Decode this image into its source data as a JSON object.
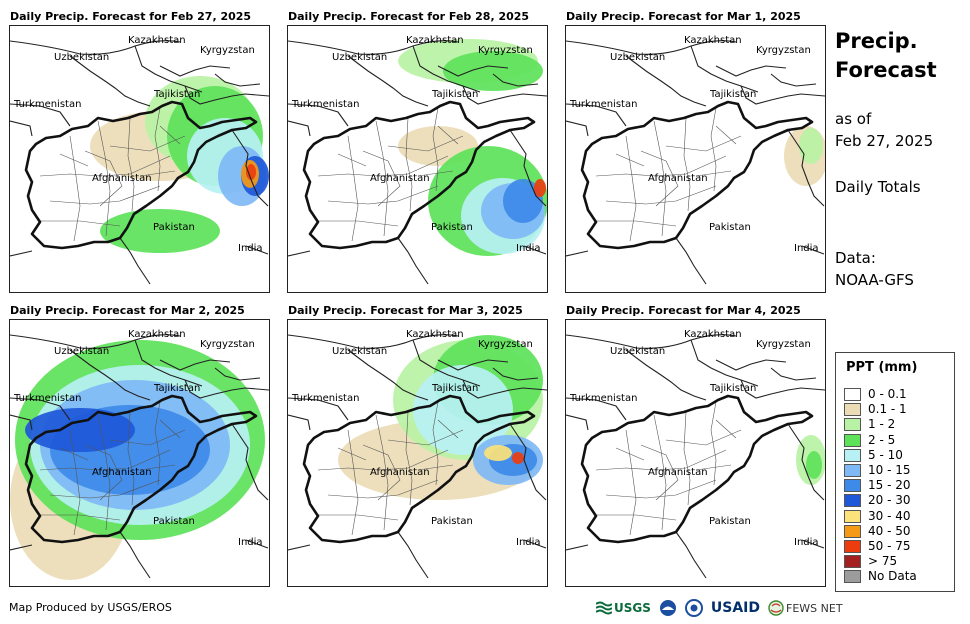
{
  "panels": [
    {
      "title": "Daily Precip. Forecast for Feb 27, 2025",
      "precip_blobs": [
        {
          "category": "0.1 - 1",
          "cx": 150,
          "cy": 120,
          "rx": 70,
          "ry": 35
        },
        {
          "category": "1 - 2",
          "cx": 190,
          "cy": 95,
          "rx": 55,
          "ry": 45
        },
        {
          "category": "2 - 5",
          "cx": 205,
          "cy": 110,
          "rx": 48,
          "ry": 50
        },
        {
          "category": "2 - 5",
          "cx": 150,
          "cy": 205,
          "rx": 60,
          "ry": 22
        },
        {
          "category": "5 - 10",
          "cx": 215,
          "cy": 130,
          "rx": 38,
          "ry": 38
        },
        {
          "category": "10 - 15",
          "cx": 232,
          "cy": 150,
          "rx": 24,
          "ry": 30
        },
        {
          "category": "20 - 30",
          "cx": 245,
          "cy": 150,
          "rx": 14,
          "ry": 20
        },
        {
          "category": "40 - 50",
          "cx": 240,
          "cy": 148,
          "rx": 9,
          "ry": 14
        },
        {
          "category": "50 - 75",
          "cx": 241,
          "cy": 146,
          "rx": 5,
          "ry": 8
        }
      ]
    },
    {
      "title": "Daily Precip. Forecast for Feb 28, 2025",
      "precip_blobs": [
        {
          "category": "1 - 2",
          "cx": 180,
          "cy": 35,
          "rx": 70,
          "ry": 22
        },
        {
          "category": "2 - 5",
          "cx": 205,
          "cy": 45,
          "rx": 50,
          "ry": 20
        },
        {
          "category": "0.1 - 1",
          "cx": 150,
          "cy": 120,
          "rx": 40,
          "ry": 20
        },
        {
          "category": "2 - 5",
          "cx": 200,
          "cy": 175,
          "rx": 60,
          "ry": 55
        },
        {
          "category": "5 - 10",
          "cx": 215,
          "cy": 190,
          "rx": 42,
          "ry": 38
        },
        {
          "category": "10 - 15",
          "cx": 225,
          "cy": 185,
          "rx": 32,
          "ry": 28
        },
        {
          "category": "15 - 20",
          "cx": 235,
          "cy": 175,
          "rx": 20,
          "ry": 22
        },
        {
          "category": "50 - 75",
          "cx": 252,
          "cy": 162,
          "rx": 6,
          "ry": 9
        }
      ]
    },
    {
      "title": "Daily Precip. Forecast for Mar 1, 2025",
      "precip_blobs": [
        {
          "category": "0.1 - 1",
          "cx": 240,
          "cy": 130,
          "rx": 22,
          "ry": 30
        },
        {
          "category": "1 - 2",
          "cx": 245,
          "cy": 120,
          "rx": 12,
          "ry": 18
        }
      ]
    },
    {
      "title": "Daily Precip. Forecast for Mar 2, 2025",
      "precip_blobs": [
        {
          "category": "0.1 - 1",
          "cx": 60,
          "cy": 180,
          "rx": 60,
          "ry": 80
        },
        {
          "category": "2 - 5",
          "cx": 130,
          "cy": 120,
          "rx": 125,
          "ry": 100
        },
        {
          "category": "5 - 10",
          "cx": 130,
          "cy": 125,
          "rx": 110,
          "ry": 80
        },
        {
          "category": "10 - 15",
          "cx": 125,
          "cy": 125,
          "rx": 95,
          "ry": 65
        },
        {
          "category": "15 - 20",
          "cx": 120,
          "cy": 130,
          "rx": 80,
          "ry": 45
        },
        {
          "category": "20 - 30",
          "cx": 70,
          "cy": 110,
          "rx": 55,
          "ry": 22
        }
      ]
    },
    {
      "title": "Daily Precip. Forecast for Mar 3, 2025",
      "precip_blobs": [
        {
          "category": "0.1 - 1",
          "cx": 150,
          "cy": 140,
          "rx": 100,
          "ry": 40
        },
        {
          "category": "1 - 2",
          "cx": 180,
          "cy": 80,
          "rx": 75,
          "ry": 60
        },
        {
          "category": "2 - 5",
          "cx": 200,
          "cy": 60,
          "rx": 55,
          "ry": 45
        },
        {
          "category": "5 - 10",
          "cx": 175,
          "cy": 90,
          "rx": 50,
          "ry": 45
        },
        {
          "category": "10 - 15",
          "cx": 220,
          "cy": 140,
          "rx": 35,
          "ry": 25
        },
        {
          "category": "15 - 20",
          "cx": 225,
          "cy": 140,
          "rx": 24,
          "ry": 16
        },
        {
          "category": "30 - 40",
          "cx": 210,
          "cy": 133,
          "rx": 14,
          "ry": 8
        },
        {
          "category": "50 - 75",
          "cx": 230,
          "cy": 138,
          "rx": 6,
          "ry": 6
        }
      ]
    },
    {
      "title": "Daily Precip. Forecast for Mar 4, 2025",
      "precip_blobs": [
        {
          "category": "1 - 2",
          "cx": 245,
          "cy": 140,
          "rx": 15,
          "ry": 25
        },
        {
          "category": "2 - 5",
          "cx": 248,
          "cy": 145,
          "rx": 8,
          "ry": 14
        }
      ]
    }
  ],
  "map_labels": {
    "kazakhstan": "Kazakhstan",
    "kyrgyzstan": "Kyrgyzstan",
    "uzbekistan": "Uzbekistan",
    "tajikistan": "Tajikistan",
    "turkmenistan": "Turkmenistan",
    "afghanistan": "Afghanistan",
    "pakistan": "Pakistan",
    "india": "India"
  },
  "side": {
    "title_line1": "Precip.",
    "title_line2": "Forecast",
    "asof_line1": "as of",
    "asof_line2": "Feb 27, 2025",
    "daily_totals": "Daily Totals",
    "data_line1": "Data:",
    "data_line2": "NOAA-GFS"
  },
  "legend": {
    "title": "PPT (mm)",
    "items": [
      {
        "label": "0 - 0.1",
        "color": "#ffffff"
      },
      {
        "label": "0.1 - 1",
        "color": "#ecdcb6"
      },
      {
        "label": "1 - 2",
        "color": "#b8f2a4"
      },
      {
        "label": "2 - 5",
        "color": "#5de25a"
      },
      {
        "label": "5 - 10",
        "color": "#b7f1f4"
      },
      {
        "label": "10 - 15",
        "color": "#7fb9f5"
      },
      {
        "label": "15 - 20",
        "color": "#3d8ae8"
      },
      {
        "label": "20 - 30",
        "color": "#1e58d8"
      },
      {
        "label": "30 - 40",
        "color": "#fbe27a"
      },
      {
        "label": "40 - 50",
        "color": "#f59a17"
      },
      {
        "label": "50 - 75",
        "color": "#ed3d0e"
      },
      {
        "label": "> 75",
        "color": "#a41f1f"
      },
      {
        "label": "No Data",
        "color": "#9c9c9c"
      }
    ]
  },
  "footer": {
    "credit": "Map Produced by USGS/EROS",
    "logo_usgs": "USGS",
    "logo_usaid": "USAID",
    "logo_fewsnet": "FEWS NET"
  }
}
